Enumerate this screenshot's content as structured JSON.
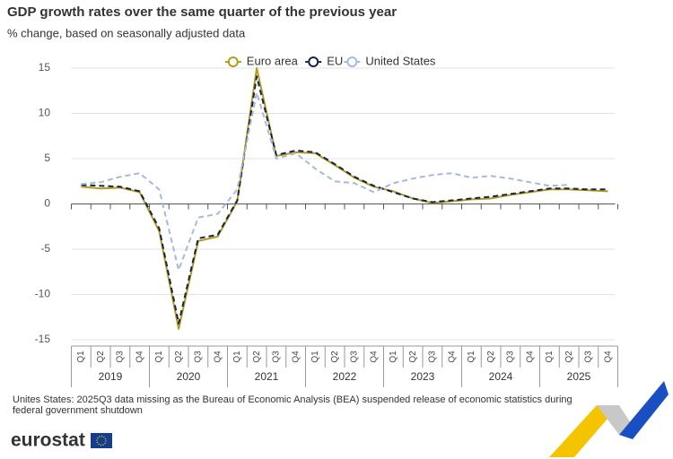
{
  "chart_data": {
    "type": "line",
    "title": "GDP growth rates over the same quarter of the previous year",
    "subtitle": "% change, based on seasonally adjusted data",
    "categories": [
      "Q1",
      "Q2",
      "Q3",
      "Q4",
      "Q1",
      "Q2",
      "Q3",
      "Q4",
      "Q1",
      "Q2",
      "Q3",
      "Q4",
      "Q1",
      "Q2",
      "Q3",
      "Q4",
      "Q1",
      "Q2",
      "Q3",
      "Q4",
      "Q1",
      "Q2",
      "Q3",
      "Q4",
      "Q1",
      "Q2",
      "Q3",
      "Q4"
    ],
    "category_groups": [
      "2019",
      "2020",
      "2021",
      "2022",
      "2023",
      "2024",
      "2025"
    ],
    "ylim": [
      -15,
      15
    ],
    "yticks": [
      -15,
      -10,
      -5,
      0,
      5,
      10,
      15
    ],
    "grid": true,
    "legend": "top",
    "series": [
      {
        "name": "Euro area",
        "color": "#b39b1c",
        "dash": "solid",
        "values": [
          1.9,
          1.7,
          1.8,
          1.3,
          -3.0,
          -13.8,
          -4.1,
          -3.6,
          0.3,
          15.0,
          5.3,
          5.7,
          5.6,
          4.3,
          2.9,
          1.9,
          1.4,
          0.6,
          0.1,
          0.3,
          0.5,
          0.6,
          1.0,
          1.3,
          1.6,
          1.6,
          1.5,
          1.4
        ]
      },
      {
        "name": "EU",
        "color": "#15224f",
        "dash": "dashed",
        "values": [
          2.1,
          2.0,
          1.9,
          1.4,
          -2.7,
          -13.2,
          -3.8,
          -3.4,
          0.4,
          14.1,
          5.4,
          5.9,
          5.7,
          4.4,
          3.0,
          2.0,
          1.3,
          0.6,
          0.2,
          0.4,
          0.6,
          0.8,
          1.1,
          1.4,
          1.7,
          1.7,
          1.6,
          1.6
        ]
      },
      {
        "name": "United States",
        "color": "#a7b9d9",
        "dash": "dashed",
        "values": [
          2.2,
          2.4,
          3.0,
          3.4,
          1.6,
          -7.3,
          -1.5,
          -1.1,
          1.6,
          12.3,
          5.0,
          5.6,
          3.9,
          2.5,
          2.3,
          1.3,
          2.3,
          2.8,
          3.2,
          3.4,
          2.9,
          3.1,
          2.8,
          2.4,
          2.0,
          2.1,
          null,
          null
        ]
      }
    ],
    "footnote": [
      "Unites States: 2025Q3 data missing as the Bureau of Economic Analysis (BEA) suspended release of economic statistics during",
      "federal government shutdown"
    ],
    "source_logo": "eurostat"
  }
}
